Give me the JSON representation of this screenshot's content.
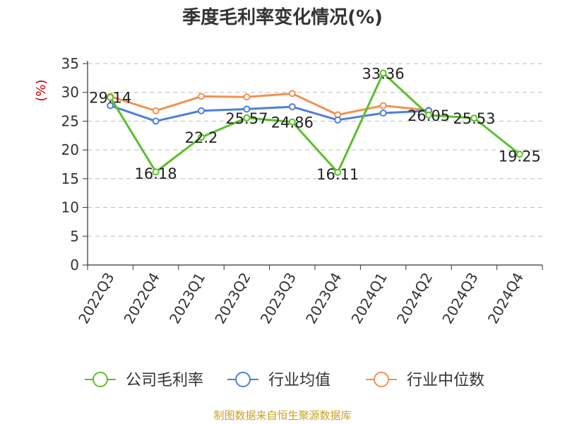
{
  "chart_data": {
    "type": "line",
    "title": "季度毛利率变化情况(%)",
    "ylabel": "(%)",
    "xlabel": "",
    "ylim": [
      0,
      35
    ],
    "yticks": [
      0,
      5,
      10,
      15,
      20,
      25,
      30,
      35
    ],
    "grid": true,
    "legend_position": "bottom",
    "categories": [
      "2022Q3",
      "2022Q4",
      "2023Q1",
      "2023Q2",
      "2023Q3",
      "2023Q4",
      "2024Q1",
      "2024Q2",
      "2024Q3",
      "2024Q4"
    ],
    "series": [
      {
        "name": "公司毛利率",
        "color": "#5ac02a",
        "values": [
          29.14,
          16.18,
          22.2,
          25.57,
          24.86,
          16.11,
          33.36,
          26.05,
          25.53,
          19.25
        ],
        "show_labels": true
      },
      {
        "name": "行业均值",
        "color": "#4f7fdc",
        "values": [
          27.7,
          25.0,
          26.8,
          27.1,
          27.5,
          25.2,
          26.4,
          26.8,
          null,
          null
        ],
        "show_labels": false
      },
      {
        "name": "行业中位数",
        "color": "#f29152",
        "values": [
          29.3,
          26.8,
          29.3,
          29.2,
          29.8,
          26.1,
          27.7,
          26.9,
          null,
          null
        ],
        "show_labels": false
      }
    ]
  },
  "footer": {
    "source": "制图数据来自恒生聚源数据库"
  }
}
